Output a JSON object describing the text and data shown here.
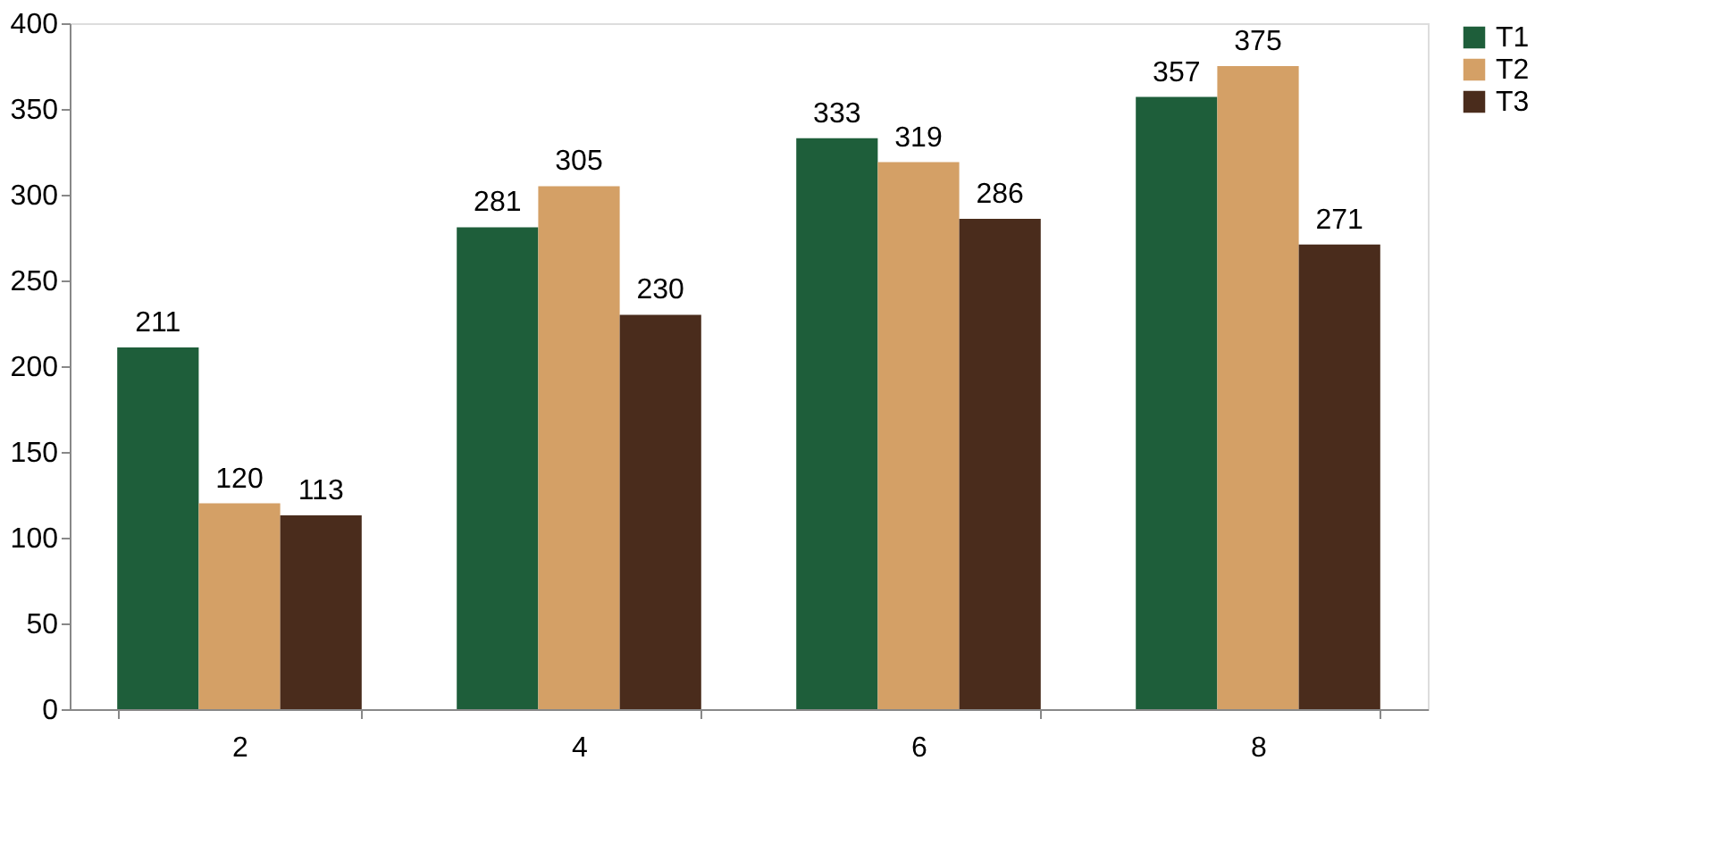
{
  "chart_data": {
    "type": "bar",
    "categories": [
      "2",
      "4",
      "6",
      "8"
    ],
    "series": [
      {
        "name": "T1",
        "color": "#1e5e3a",
        "values": [
          211,
          281,
          333,
          357
        ]
      },
      {
        "name": "T2",
        "color": "#d4a066",
        "values": [
          120,
          305,
          319,
          375
        ]
      },
      {
        "name": "T3",
        "color": "#4a2c1c",
        "values": [
          113,
          230,
          286,
          271
        ]
      }
    ],
    "ylim": [
      0,
      400
    ],
    "yticks": [
      0,
      50,
      100,
      150,
      200,
      250,
      300,
      350,
      400
    ],
    "grid": false,
    "legend": "right",
    "data_labels": true
  }
}
